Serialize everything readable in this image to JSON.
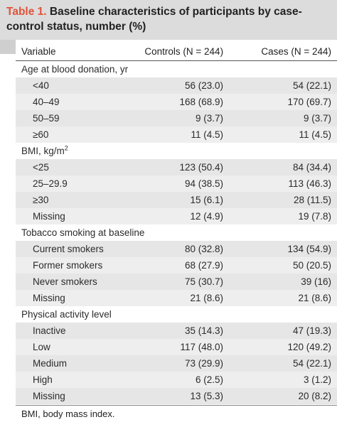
{
  "caption": {
    "label": "Table 1.",
    "text": "Baseline characteristics of participants by case-control status, number (%)"
  },
  "columns": [
    "Variable",
    "Controls (N = 244)",
    "Cases (N = 244)"
  ],
  "sections": [
    {
      "title": "Age at blood donation, yr",
      "rows": [
        {
          "label": "<40",
          "controls": "56 (23.0)",
          "cases": "54 (22.1)"
        },
        {
          "label": "40–49",
          "controls": "168 (68.9)",
          "cases": "170 (69.7)"
        },
        {
          "label": "50–59",
          "controls": "9 (3.7)",
          "cases": "9 (3.7)"
        },
        {
          "label": "≥60",
          "controls": "11 (4.5)",
          "cases": "11 (4.5)"
        }
      ]
    },
    {
      "title": "BMI, kg/m",
      "title_sup": "2",
      "rows": [
        {
          "label": "<25",
          "controls": "123 (50.4)",
          "cases": "84 (34.4)"
        },
        {
          "label": "25–29.9",
          "controls": "94 (38.5)",
          "cases": "113 (46.3)"
        },
        {
          "label": "≥30",
          "controls": "15 (6.1)",
          "cases": "28 (11.5)"
        },
        {
          "label": "Missing",
          "controls": "12 (4.9)",
          "cases": "19 (7.8)"
        }
      ]
    },
    {
      "title": "Tobacco smoking at baseline",
      "rows": [
        {
          "label": "Current smokers",
          "controls": "80 (32.8)",
          "cases": "134 (54.9)"
        },
        {
          "label": "Former smokers",
          "controls": "68 (27.9)",
          "cases": "50 (20.5)"
        },
        {
          "label": "Never smokers",
          "controls": "75 (30.7)",
          "cases": "39 (16)"
        },
        {
          "label": "Missing",
          "controls": "21 (8.6)",
          "cases": "21 (8.6)"
        }
      ]
    },
    {
      "title": "Physical activity level",
      "rows": [
        {
          "label": "Inactive",
          "controls": "35 (14.3)",
          "cases": "47 (19.3)"
        },
        {
          "label": "Low",
          "controls": "117 (48.0)",
          "cases": "120 (49.2)"
        },
        {
          "label": "Medium",
          "controls": "73 (29.9)",
          "cases": "54 (22.1)"
        },
        {
          "label": "High",
          "controls": "6 (2.5)",
          "cases": "3 (1.2)"
        },
        {
          "label": "Missing",
          "controls": "13 (5.3)",
          "cases": "20 (8.2)"
        }
      ]
    }
  ],
  "footnote": "BMI, body mass index."
}
